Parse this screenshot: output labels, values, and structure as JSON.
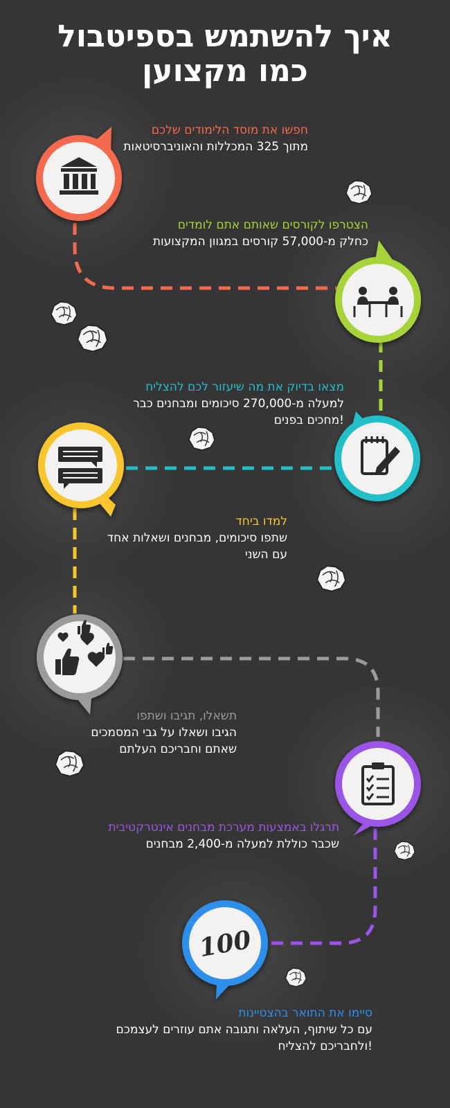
{
  "title": {
    "line1": "איך להשתמש בספיטבול",
    "line2": "כמו מקצוען"
  },
  "colors": {
    "background": "#353535",
    "step1": "#f36b4f",
    "step2": "#a8d43b",
    "step3": "#22bfc9",
    "step4": "#f7c62f",
    "step5": "#9b9b9b",
    "step6": "#9a55e6",
    "step7": "#2f8fea"
  },
  "steps": [
    {
      "heading": "חפשו את מוסד הלימודים שלכם",
      "line1": "מתוך 325 המכללות והאוניברסיטאות",
      "line2": "",
      "icon": "university-building-icon"
    },
    {
      "heading": "הצטרפו לקורסים שאותם אתם לומדים",
      "line1": "כחלק מ-57,000 קורסים במגוון המקצועות",
      "line2": "",
      "icon": "students-table-icon"
    },
    {
      "heading": "מצאו בדיוק את מה שיעזור לכם להצליח",
      "line1": "למעלה מ-270,000 סיכומים ומבחנים כבר",
      "line2": "!מחכים בפנים",
      "icon": "notepad-pencil-icon"
    },
    {
      "heading": "למדו ביחד",
      "line1": "שתפו סיכומים, מבחנים ושאלות אחד",
      "line2": "עם השני",
      "icon": "chat-bubbles-icon"
    },
    {
      "heading": "תשאלו, תגיבו ושתפו",
      "line1": "הגיבו ושאלו על גבי המסמכים",
      "line2": "שאתם וחבריכם העלתם",
      "icon": "likes-hearts-icon"
    },
    {
      "heading": "תרגלו באמצעות מערכת מבחנים אינטרקטיבית",
      "line1": "שכבר כוללת למעלה מ-2,400 מבחנים",
      "line2": "",
      "icon": "checklist-clipboard-icon"
    },
    {
      "heading": "סיימו את התואר בהצטיינות",
      "line1": "עם כל שיתוף, העלאה ותגובה אתם עוזרים לעצמכם",
      "line2": "!ולחבריכם להצליח",
      "icon": "score-100-icon",
      "badge_text": "100"
    }
  ]
}
